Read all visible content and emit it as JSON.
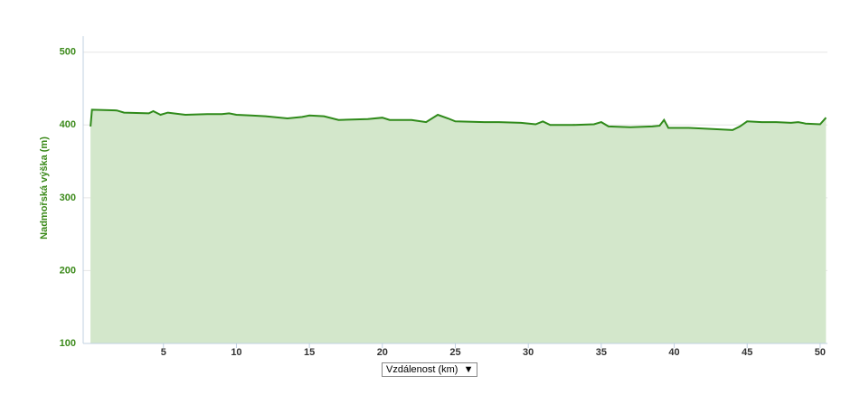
{
  "chart_data": {
    "type": "area",
    "ylabel": "Nadmořská výška (m)",
    "xlabel": "Vzdálenost (km)",
    "x": [
      0,
      0.1,
      1.8,
      2.3,
      4,
      4.3,
      4.8,
      5.3,
      6.5,
      8,
      9,
      9.5,
      10,
      11,
      12,
      13.5,
      14.5,
      15,
      16,
      17,
      19,
      20,
      20.5,
      22,
      23,
      23.8,
      24.5,
      25,
      27,
      28,
      29.5,
      30.5,
      31,
      31.5,
      33,
      34.5,
      35,
      35.5,
      37,
      38.5,
      39,
      39.3,
      39.6,
      41,
      42,
      44,
      44.5,
      45,
      46,
      47,
      48,
      48.5,
      49,
      50,
      50.4
    ],
    "values": [
      398,
      421,
      420,
      417,
      416,
      419,
      414,
      417,
      414,
      415,
      415,
      416,
      414,
      413,
      412,
      409,
      411,
      413,
      412,
      407,
      408,
      410,
      407,
      407,
      404,
      414,
      409,
      405,
      404,
      404,
      403,
      401,
      405,
      400,
      400,
      401,
      404,
      398,
      397,
      398,
      399,
      407,
      396,
      396,
      395,
      393,
      398,
      405,
      404,
      404,
      403,
      404,
      402,
      401,
      410
    ],
    "line_color": "#2f8a1a",
    "fill_color": "#d3e7cb",
    "xlim": [
      -0.5,
      50.5
    ],
    "xticks": [
      5,
      10,
      15,
      20,
      25,
      30,
      35,
      40,
      45,
      50
    ],
    "ylim": [
      100,
      522
    ],
    "yticks": [
      100,
      200,
      300,
      400,
      500
    ],
    "grid": true
  }
}
